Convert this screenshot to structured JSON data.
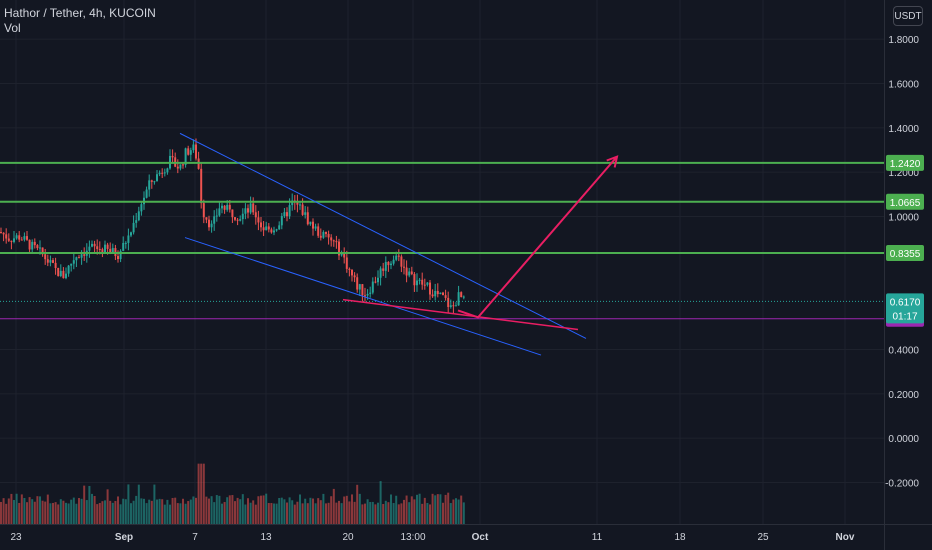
{
  "header": {
    "symbol": "Hathor / Tether, 4h, KUCOIN",
    "indicator": "Vol",
    "currency": "USDT"
  },
  "colors": {
    "background": "#131722",
    "grid": "#1e222d",
    "up": "#26a69a",
    "down": "#ef5350",
    "level_line": "#4caf50",
    "level_label": "#4caf50",
    "channel": "#2962ff",
    "trend_line": "#e91e63",
    "arrow": "#e91e63",
    "support": "#9c27b0",
    "last_price": "#26a69a",
    "axis_text": "#d1d4dc"
  },
  "chart_data": {
    "type": "candlestick",
    "title": "Hathor / Tether, 4h, KUCOIN",
    "y_axis_ticks": [
      "1.8000",
      "1.6000",
      "1.4000",
      "1.2000",
      "1.0000",
      "0.4000",
      "0.2000",
      "0.0000",
      "-0.2000"
    ],
    "y_axis_values": [
      1.8,
      1.6,
      1.4,
      1.2,
      1.0,
      0.4,
      0.2,
      0.0,
      -0.2
    ],
    "ylim": [
      -0.38,
      2.0
    ],
    "x_axis_ticks": [
      "23",
      "Sep",
      "7",
      "13",
      "20",
      "13:00",
      "Oct",
      "11",
      "18",
      "25",
      "Nov"
    ],
    "x_axis_bold": [
      "Sep",
      "Oct",
      "Nov"
    ],
    "horizontal_levels": [
      {
        "label": "1.2420",
        "value": 1.242
      },
      {
        "label": "1.0665",
        "value": 1.0665
      },
      {
        "label": "0.8355",
        "value": 0.8355
      }
    ],
    "support_level": {
      "label": "0.5390",
      "value": 0.539
    },
    "last_price": {
      "label": "0.6170",
      "value": 0.617,
      "countdown": "01:17"
    },
    "price_path_x": [
      0,
      10,
      20,
      30,
      42,
      55,
      63,
      75,
      92,
      105,
      118,
      130,
      140,
      150,
      160,
      170,
      180,
      186,
      193,
      198,
      202,
      206,
      212,
      220,
      230,
      240,
      252,
      262,
      272,
      282,
      292,
      300,
      310,
      320,
      332,
      342,
      350,
      358,
      366,
      376,
      384,
      390,
      398,
      404,
      412,
      420,
      428,
      436,
      444,
      452,
      458,
      462,
      466
    ],
    "price_path_y": [
      0.93,
      0.9,
      0.91,
      0.87,
      0.83,
      0.76,
      0.73,
      0.82,
      0.86,
      0.85,
      0.83,
      0.92,
      1.05,
      1.15,
      1.2,
      1.25,
      1.22,
      1.29,
      1.31,
      1.25,
      1.03,
      1.0,
      0.95,
      1.05,
      1.02,
      1.0,
      1.04,
      0.95,
      0.94,
      0.98,
      1.06,
      1.04,
      0.97,
      0.92,
      0.89,
      0.83,
      0.75,
      0.68,
      0.65,
      0.72,
      0.78,
      0.8,
      0.82,
      0.77,
      0.72,
      0.7,
      0.68,
      0.65,
      0.63,
      0.58,
      0.64,
      0.63,
      0.6
    ],
    "volume_peak": 0.205,
    "series": [
      {
        "name": "Vol"
      }
    ],
    "annotations": [
      {
        "type": "channel-upper",
        "from": [
          180,
          1.375
        ],
        "to": [
          586,
          0.45
        ]
      },
      {
        "type": "channel-lower",
        "from": [
          185,
          0.905
        ],
        "to": [
          541,
          0.375
        ]
      },
      {
        "type": "wedge-line",
        "from": [
          343,
          0.625
        ],
        "to": [
          578,
          0.49
        ]
      },
      {
        "type": "projection-arrow",
        "points": [
          [
            458,
            0.576
          ],
          [
            478,
            0.545
          ],
          [
            617,
            1.27
          ]
        ]
      }
    ]
  }
}
